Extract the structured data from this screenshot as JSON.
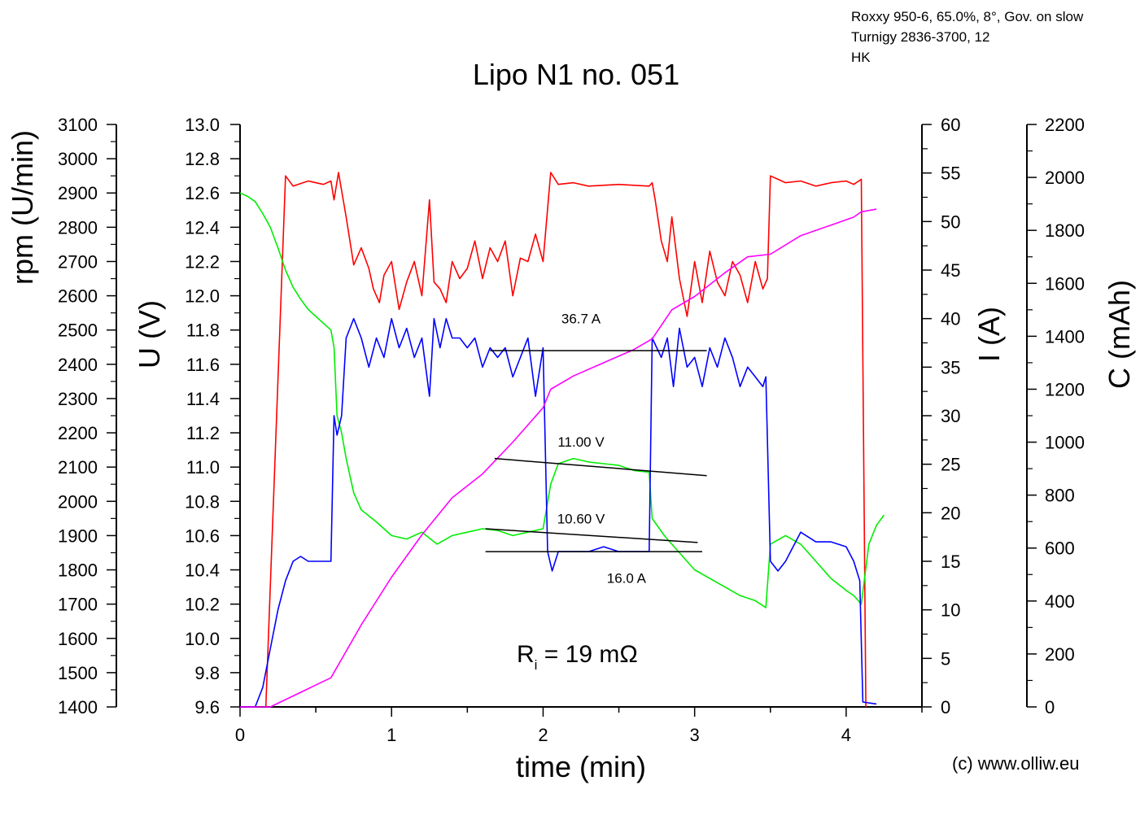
{
  "header_info": [
    "Roxxy 950-6, 65.0%, 8°, Gov. on slow",
    "Turnigy 2836-3700, 12",
    "HK"
  ],
  "copyright": "(c) www.olliw.eu",
  "chart_data": {
    "type": "line",
    "title": "Lipo N1 no. 051",
    "xlabel": "time (min)",
    "xlim": [
      0,
      4.5
    ],
    "xticks": [
      0,
      1,
      2,
      3,
      4
    ],
    "axes": {
      "rpm": {
        "label": "rpm (U/min)",
        "range": [
          1400,
          3100
        ],
        "step": 100
      },
      "U": {
        "label": "U (V)",
        "range": [
          9.6,
          13.0
        ],
        "step": 0.2,
        "decimals": 1
      },
      "I": {
        "label": "I (A)",
        "range": [
          0,
          60
        ],
        "step": 5
      },
      "C": {
        "label": "C (mAh)",
        "range": [
          0,
          2200
        ],
        "step": 200
      }
    },
    "colors": {
      "rpm": "#ff0000",
      "U": "#00ee00",
      "I": "#0000ff",
      "C": "#ff00ff",
      "annotation": "#000000"
    },
    "series": [
      {
        "name": "rpm",
        "axis": "rpm",
        "color": "#ff0000",
        "points": [
          [
            0.17,
            1400
          ],
          [
            0.3,
            2950
          ],
          [
            0.35,
            2920
          ],
          [
            0.45,
            2935
          ],
          [
            0.55,
            2925
          ],
          [
            0.6,
            2935
          ],
          [
            0.62,
            2880
          ],
          [
            0.65,
            2960
          ],
          [
            0.7,
            2830
          ],
          [
            0.75,
            2690
          ],
          [
            0.8,
            2740
          ],
          [
            0.85,
            2680
          ],
          [
            0.88,
            2620
          ],
          [
            0.92,
            2580
          ],
          [
            0.95,
            2660
          ],
          [
            1.0,
            2700
          ],
          [
            1.05,
            2560
          ],
          [
            1.1,
            2640
          ],
          [
            1.15,
            2700
          ],
          [
            1.2,
            2600
          ],
          [
            1.25,
            2880
          ],
          [
            1.28,
            2640
          ],
          [
            1.32,
            2620
          ],
          [
            1.36,
            2580
          ],
          [
            1.4,
            2700
          ],
          [
            1.45,
            2650
          ],
          [
            1.5,
            2680
          ],
          [
            1.55,
            2760
          ],
          [
            1.6,
            2650
          ],
          [
            1.65,
            2740
          ],
          [
            1.7,
            2700
          ],
          [
            1.75,
            2760
          ],
          [
            1.8,
            2600
          ],
          [
            1.85,
            2710
          ],
          [
            1.9,
            2700
          ],
          [
            1.95,
            2780
          ],
          [
            2.0,
            2700
          ],
          [
            2.05,
            2960
          ],
          [
            2.1,
            2925
          ],
          [
            2.2,
            2930
          ],
          [
            2.3,
            2920
          ],
          [
            2.5,
            2925
          ],
          [
            2.7,
            2920
          ],
          [
            2.72,
            2930
          ],
          [
            2.74,
            2880
          ],
          [
            2.78,
            2760
          ],
          [
            2.82,
            2700
          ],
          [
            2.85,
            2830
          ],
          [
            2.9,
            2650
          ],
          [
            2.95,
            2540
          ],
          [
            3.0,
            2700
          ],
          [
            3.05,
            2580
          ],
          [
            3.1,
            2730
          ],
          [
            3.15,
            2640
          ],
          [
            3.2,
            2600
          ],
          [
            3.25,
            2700
          ],
          [
            3.3,
            2660
          ],
          [
            3.35,
            2580
          ],
          [
            3.4,
            2700
          ],
          [
            3.45,
            2620
          ],
          [
            3.48,
            2650
          ],
          [
            3.5,
            2950
          ],
          [
            3.55,
            2940
          ],
          [
            3.6,
            2930
          ],
          [
            3.7,
            2935
          ],
          [
            3.8,
            2920
          ],
          [
            3.9,
            2930
          ],
          [
            4.0,
            2935
          ],
          [
            4.05,
            2925
          ],
          [
            4.1,
            2940
          ],
          [
            4.13,
            1400
          ]
        ]
      },
      {
        "name": "U",
        "axis": "U",
        "color": "#00ee00",
        "points": [
          [
            0.0,
            12.6
          ],
          [
            0.05,
            12.58
          ],
          [
            0.1,
            12.55
          ],
          [
            0.15,
            12.48
          ],
          [
            0.2,
            12.4
          ],
          [
            0.25,
            12.28
          ],
          [
            0.3,
            12.15
          ],
          [
            0.35,
            12.05
          ],
          [
            0.4,
            11.98
          ],
          [
            0.45,
            11.92
          ],
          [
            0.5,
            11.88
          ],
          [
            0.55,
            11.84
          ],
          [
            0.6,
            11.8
          ],
          [
            0.62,
            11.7
          ],
          [
            0.64,
            11.3
          ],
          [
            0.67,
            11.2
          ],
          [
            0.7,
            11.05
          ],
          [
            0.75,
            10.85
          ],
          [
            0.8,
            10.75
          ],
          [
            0.9,
            10.68
          ],
          [
            1.0,
            10.6
          ],
          [
            1.1,
            10.58
          ],
          [
            1.2,
            10.62
          ],
          [
            1.3,
            10.55
          ],
          [
            1.4,
            10.6
          ],
          [
            1.5,
            10.62
          ],
          [
            1.6,
            10.64
          ],
          [
            1.7,
            10.63
          ],
          [
            1.8,
            10.6
          ],
          [
            1.9,
            10.62
          ],
          [
            2.0,
            10.64
          ],
          [
            2.05,
            10.9
          ],
          [
            2.1,
            11.02
          ],
          [
            2.2,
            11.05
          ],
          [
            2.3,
            11.03
          ],
          [
            2.4,
            11.02
          ],
          [
            2.5,
            11.01
          ],
          [
            2.6,
            10.98
          ],
          [
            2.7,
            10.97
          ],
          [
            2.72,
            10.7
          ],
          [
            2.8,
            10.6
          ],
          [
            2.9,
            10.5
          ],
          [
            3.0,
            10.4
          ],
          [
            3.1,
            10.35
          ],
          [
            3.2,
            10.3
          ],
          [
            3.3,
            10.25
          ],
          [
            3.4,
            10.22
          ],
          [
            3.47,
            10.18
          ],
          [
            3.5,
            10.55
          ],
          [
            3.6,
            10.6
          ],
          [
            3.7,
            10.55
          ],
          [
            3.8,
            10.45
          ],
          [
            3.9,
            10.35
          ],
          [
            4.0,
            10.28
          ],
          [
            4.05,
            10.25
          ],
          [
            4.1,
            10.2
          ],
          [
            4.15,
            10.55
          ],
          [
            4.2,
            10.66
          ],
          [
            4.25,
            10.72
          ]
        ]
      },
      {
        "name": "I",
        "axis": "I",
        "color": "#0000ff",
        "points": [
          [
            0.0,
            0
          ],
          [
            0.1,
            0
          ],
          [
            0.15,
            2
          ],
          [
            0.2,
            6
          ],
          [
            0.25,
            10
          ],
          [
            0.3,
            13
          ],
          [
            0.35,
            15
          ],
          [
            0.4,
            15.5
          ],
          [
            0.45,
            15
          ],
          [
            0.5,
            15
          ],
          [
            0.55,
            15
          ],
          [
            0.6,
            15
          ],
          [
            0.62,
            30
          ],
          [
            0.64,
            28
          ],
          [
            0.67,
            30
          ],
          [
            0.7,
            38
          ],
          [
            0.75,
            40
          ],
          [
            0.8,
            38
          ],
          [
            0.85,
            35
          ],
          [
            0.9,
            38
          ],
          [
            0.95,
            36
          ],
          [
            1.0,
            40
          ],
          [
            1.05,
            37
          ],
          [
            1.1,
            39
          ],
          [
            1.15,
            36
          ],
          [
            1.2,
            38
          ],
          [
            1.25,
            32
          ],
          [
            1.28,
            40
          ],
          [
            1.32,
            37
          ],
          [
            1.36,
            40
          ],
          [
            1.4,
            38
          ],
          [
            1.45,
            38
          ],
          [
            1.5,
            37
          ],
          [
            1.55,
            38
          ],
          [
            1.6,
            35
          ],
          [
            1.65,
            37
          ],
          [
            1.7,
            36
          ],
          [
            1.75,
            37
          ],
          [
            1.8,
            34
          ],
          [
            1.85,
            36
          ],
          [
            1.9,
            38
          ],
          [
            1.95,
            32
          ],
          [
            2.0,
            37
          ],
          [
            2.03,
            16
          ],
          [
            2.06,
            14
          ],
          [
            2.1,
            16
          ],
          [
            2.2,
            16
          ],
          [
            2.3,
            16
          ],
          [
            2.4,
            16.5
          ],
          [
            2.5,
            16
          ],
          [
            2.6,
            16
          ],
          [
            2.7,
            16
          ],
          [
            2.72,
            38
          ],
          [
            2.78,
            36
          ],
          [
            2.82,
            38
          ],
          [
            2.86,
            33
          ],
          [
            2.9,
            39
          ],
          [
            2.95,
            35
          ],
          [
            3.0,
            36
          ],
          [
            3.05,
            33
          ],
          [
            3.1,
            37
          ],
          [
            3.15,
            35
          ],
          [
            3.2,
            38
          ],
          [
            3.25,
            36
          ],
          [
            3.3,
            33
          ],
          [
            3.35,
            35
          ],
          [
            3.4,
            34
          ],
          [
            3.45,
            33
          ],
          [
            3.47,
            34
          ],
          [
            3.5,
            15
          ],
          [
            3.55,
            14
          ],
          [
            3.6,
            15
          ],
          [
            3.7,
            18
          ],
          [
            3.8,
            17
          ],
          [
            3.9,
            17
          ],
          [
            4.0,
            16.5
          ],
          [
            4.05,
            15
          ],
          [
            4.09,
            13
          ],
          [
            4.11,
            0.5
          ],
          [
            4.2,
            0.3
          ]
        ]
      },
      {
        "name": "C",
        "axis": "C",
        "color": "#ff00ff",
        "points": [
          [
            0.0,
            0
          ],
          [
            0.2,
            0
          ],
          [
            0.6,
            110
          ],
          [
            0.8,
            310
          ],
          [
            1.0,
            490
          ],
          [
            1.2,
            650
          ],
          [
            1.4,
            790
          ],
          [
            1.6,
            880
          ],
          [
            1.8,
            1000
          ],
          [
            2.0,
            1130
          ],
          [
            2.05,
            1200
          ],
          [
            2.2,
            1250
          ],
          [
            2.4,
            1300
          ],
          [
            2.6,
            1350
          ],
          [
            2.72,
            1390
          ],
          [
            2.85,
            1500
          ],
          [
            3.0,
            1550
          ],
          [
            3.2,
            1640
          ],
          [
            3.35,
            1700
          ],
          [
            3.5,
            1710
          ],
          [
            3.7,
            1780
          ],
          [
            3.9,
            1820
          ],
          [
            4.05,
            1850
          ],
          [
            4.1,
            1870
          ],
          [
            4.2,
            1880
          ]
        ]
      }
    ],
    "annotations": [
      {
        "label": "36.7 A",
        "axis": "I",
        "line": [
          [
            1.65,
            36.7
          ],
          [
            3.08,
            36.7
          ]
        ],
        "text_at": [
          2.25,
          39.5
        ]
      },
      {
        "label": "11.00 V",
        "axis": "U",
        "line": [
          [
            1.68,
            11.05
          ],
          [
            3.08,
            10.95
          ]
        ],
        "text_at": [
          2.25,
          11.12
        ]
      },
      {
        "label": "10.60 V",
        "axis": "U",
        "line": [
          [
            1.62,
            10.64
          ],
          [
            3.02,
            10.56
          ]
        ],
        "text_at": [
          2.25,
          10.67
        ]
      },
      {
        "label": "16.0 A",
        "axis": "I",
        "line": [
          [
            1.62,
            16.0
          ],
          [
            3.05,
            16.0
          ]
        ],
        "text_at": [
          2.55,
          12.8
        ]
      }
    ],
    "ri_label": {
      "prefix": "R",
      "sub": "i",
      "suffix": " = 19 mΩ"
    }
  }
}
